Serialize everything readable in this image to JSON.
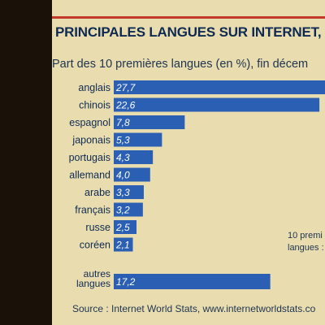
{
  "chart_data": {
    "type": "bar",
    "orientation": "horizontal",
    "title": "PRINCIPALES LANGUES SUR INTERNET,",
    "subtitle": "Part des 10 premières langues (en %), fin décem",
    "categories": [
      "anglais",
      "chinois",
      "espagnol",
      "japonais",
      "portugais",
      "allemand",
      "arabe",
      "français",
      "russe",
      "coréen"
    ],
    "values": [
      27.7,
      22.6,
      7.8,
      5.3,
      4.3,
      4.0,
      3.3,
      3.2,
      2.5,
      2.1
    ],
    "value_labels": [
      "27,7",
      "22,6",
      "7,8",
      "5,3",
      "4,3",
      "4,0",
      "3,3",
      "3,2",
      "2,5",
      "2,1"
    ],
    "other": {
      "label_line1": "autres",
      "label_line2": "langues",
      "value": 17.2,
      "value_label": "17,2"
    },
    "side_note": "10 premi\nlangues :",
    "source": "Source : Internet World Stats, www.internetworldstats.co",
    "bar_color": "#2a5fb4",
    "background_color": "#e9ddb0",
    "accent_color": "#c0392b",
    "text_color": "#0f2a52"
  }
}
